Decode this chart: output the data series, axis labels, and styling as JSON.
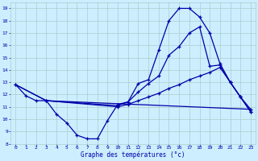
{
  "title": "Graphe des températures (°c)",
  "bg_color": "#cceeff",
  "grid_color": "#aacccc",
  "line_color": "#0000aa",
  "xlim": [
    -0.5,
    23.5
  ],
  "ylim": [
    8,
    19.5
  ],
  "xticks": [
    0,
    1,
    2,
    3,
    4,
    5,
    6,
    7,
    8,
    9,
    10,
    11,
    12,
    13,
    14,
    15,
    16,
    17,
    18,
    19,
    20,
    21,
    22,
    23
  ],
  "yticks": [
    8,
    9,
    10,
    11,
    12,
    13,
    14,
    15,
    16,
    17,
    18,
    19
  ],
  "curve1_x": [
    0,
    1,
    2,
    3,
    4,
    5,
    6,
    7,
    8,
    9,
    10,
    11,
    12,
    13,
    14,
    15,
    16,
    17,
    18,
    19,
    20,
    21,
    22,
    23
  ],
  "curve1_y": [
    12.8,
    11.9,
    11.5,
    11.5,
    10.4,
    9.7,
    8.7,
    8.4,
    8.4,
    9.9,
    11.2,
    11.4,
    12.9,
    13.2,
    15.6,
    18.0,
    19.0,
    19.0,
    18.3,
    17.0,
    14.5,
    13.0,
    11.8,
    10.6
  ],
  "curve2_x": [
    3,
    10,
    11,
    12,
    13,
    14,
    15,
    16,
    17,
    18,
    19,
    20,
    21,
    22,
    23
  ],
  "curve2_y": [
    11.5,
    11.1,
    11.4,
    12.2,
    12.9,
    13.5,
    15.2,
    15.9,
    17.0,
    17.5,
    14.3,
    14.4,
    13.0,
    11.8,
    10.6
  ],
  "curve3_x": [
    0,
    3,
    10,
    11,
    12,
    13,
    14,
    15,
    16,
    17,
    18,
    19,
    20,
    21,
    22,
    23
  ],
  "curve3_y": [
    12.8,
    11.5,
    11.0,
    11.2,
    11.5,
    11.8,
    12.1,
    12.5,
    12.8,
    13.2,
    13.5,
    13.8,
    14.2,
    13.0,
    11.8,
    10.8
  ],
  "curve4_x": [
    0,
    3,
    23
  ],
  "curve4_y": [
    12.8,
    11.5,
    10.8
  ]
}
